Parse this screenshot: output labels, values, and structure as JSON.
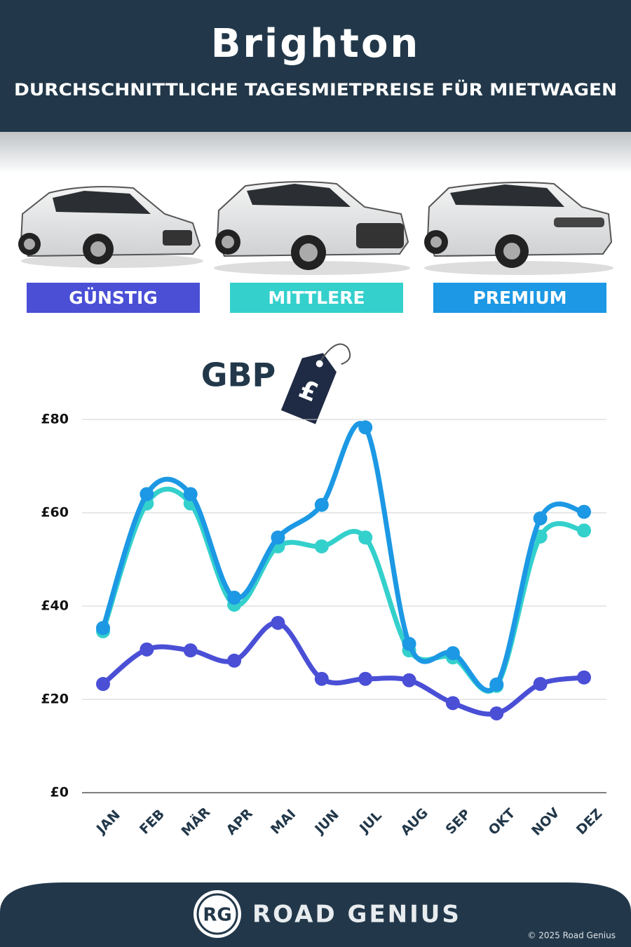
{
  "chart_data": {
    "type": "line",
    "title": "Brighton",
    "subtitle": "DURCHSCHNITTLICHE TAGESMIETPREISE FÜR MIETWAGEN",
    "annotation": "GBP",
    "currency_symbol": "£",
    "categories": [
      "JAN",
      "FEB",
      "MÄR",
      "APR",
      "MAI",
      "JUN",
      "JUL",
      "AUG",
      "SEP",
      "OKT",
      "NOV",
      "DEZ"
    ],
    "series": [
      {
        "name": "GÜNSTIG",
        "color": "#4a4fd6",
        "values": [
          23.3,
          30.7,
          30.5,
          28.3,
          36.4,
          24.4,
          24.4,
          24.1,
          19.2,
          17,
          23.3,
          24.7
        ]
      },
      {
        "name": "MITTLERE",
        "color": "#34d0cc",
        "values": [
          34.6,
          62,
          62,
          40.3,
          52.8,
          52.8,
          54.7,
          30.5,
          29,
          22.9,
          54.9,
          56.2
        ]
      },
      {
        "name": "PREMIUM",
        "color": "#1c98e4",
        "values": [
          35.3,
          64,
          64,
          41.8,
          54.7,
          61.7,
          78.3,
          31.9,
          29.9,
          23.2,
          58.8,
          60.2
        ]
      }
    ],
    "ylim": [
      0,
      80
    ],
    "yticks": [
      {
        "value": 0,
        "label": "£0"
      },
      {
        "value": 20,
        "label": "£20"
      },
      {
        "value": 40,
        "label": "£40"
      },
      {
        "value": 60,
        "label": "£60"
      },
      {
        "value": 80,
        "label": "£80"
      }
    ],
    "grid": true
  },
  "footer": {
    "logo": "RG",
    "brand": "ROAD GENIUS",
    "copyright": "© 2025 Road Genius"
  }
}
